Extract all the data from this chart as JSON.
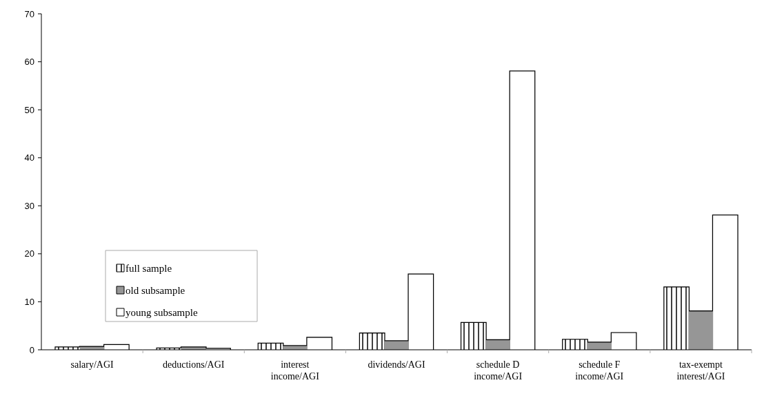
{
  "chart_data": {
    "type": "bar",
    "categories": [
      "salary/AGI",
      "deductions/AGI",
      "interest income/AGI",
      "dividends/AGI",
      "schedule D income/AGI",
      "schedule F income/AGI",
      "tax-exempt interest/AGI"
    ],
    "series": [
      {
        "name": "full sample",
        "color": "#ffffff",
        "values": [
          0.5,
          0.3,
          1.3,
          3.4,
          5.6,
          2.1,
          13
        ]
      },
      {
        "name": "old subsample",
        "color": "#969696",
        "values": [
          0.6,
          0.5,
          0.8,
          1.8,
          2.0,
          1.5,
          8
        ]
      },
      {
        "name": "young subsample",
        "color": "#ffffff",
        "values": [
          1.0,
          0.2,
          2.5,
          15.7,
          58,
          3.5,
          28
        ]
      }
    ],
    "ylim": [
      0,
      70
    ],
    "yticks": [
      0,
      10,
      20,
      30,
      40,
      50,
      60,
      70
    ],
    "grid": false,
    "legend": "bottom left"
  }
}
